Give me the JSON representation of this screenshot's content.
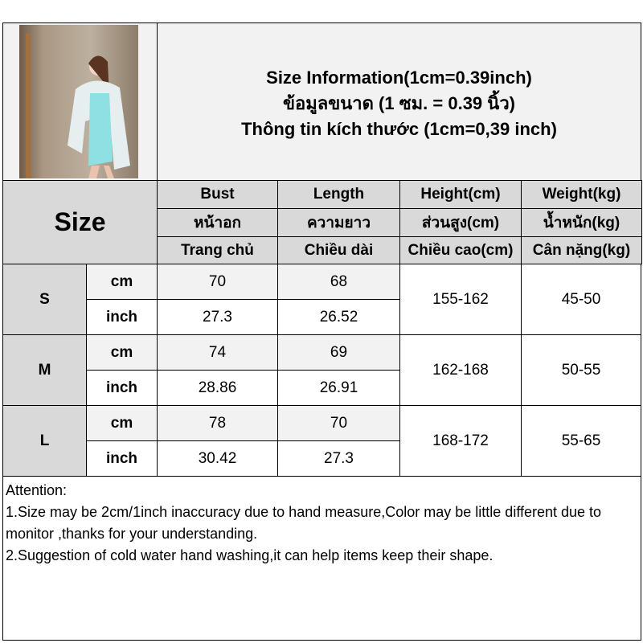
{
  "title": {
    "lines": [
      "Size Information(1cm=0.39inch)",
      "ข้อมูลขนาด (1 ซม. = 0.39 นิ้ว)",
      "Thông tin kích thước (1cm=0,39 inch)"
    ]
  },
  "size_header": "Size",
  "columns": [
    {
      "en": "Bust",
      "th": "หน้าอก",
      "vi": "Trang chủ"
    },
    {
      "en": "Length",
      "th": "ความยาว",
      "vi": "Chiều dài"
    },
    {
      "en": "Height(cm)",
      "th": "ส่วนสูง(cm)",
      "vi": "Chiều cao(cm)"
    },
    {
      "en": "Weight(kg)",
      "th": "น้ำหนัก(kg)",
      "vi": "Cân nặng(kg)"
    }
  ],
  "units": {
    "cm": "cm",
    "inch": "inch"
  },
  "rows": [
    {
      "size": "S",
      "cm": [
        "70",
        "68"
      ],
      "inch": [
        "27.3",
        "26.52"
      ],
      "height": "155-162",
      "weight": "45-50"
    },
    {
      "size": "M",
      "cm": [
        "74",
        "69"
      ],
      "inch": [
        "28.86",
        "26.91"
      ],
      "height": "162-168",
      "weight": "50-55"
    },
    {
      "size": "L",
      "cm": [
        "78",
        "70"
      ],
      "inch": [
        "30.42",
        "27.3"
      ],
      "height": "168-172",
      "weight": "55-65"
    }
  ],
  "notes": [
    "Attention:",
    "1.Size may be 2cm/1inch inaccuracy due to hand measure,Color may be little different due to monitor ,thanks for your understanding.",
    "2.Suggestion of cold water hand washing,it can help items keep their shape."
  ]
}
